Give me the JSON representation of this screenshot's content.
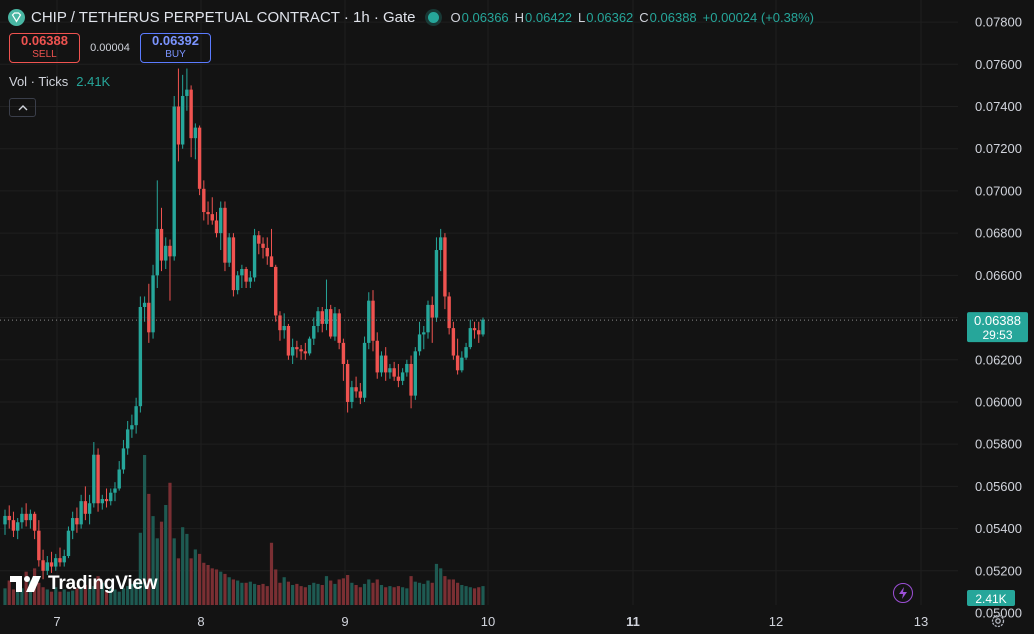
{
  "header": {
    "title": "CHIP / TETHERUS PERPETUAL CONTRACT · 1h · Gate",
    "ohlc": {
      "o_label": "O",
      "o": "0.06366",
      "h_label": "H",
      "h": "0.06422",
      "l_label": "L",
      "l": "0.06362",
      "c_label": "C",
      "c": "0.06388"
    },
    "change": "+0.00024 (+0.38%)"
  },
  "trade": {
    "sell_price": "0.06388",
    "sell_label": "SELL",
    "spread": "0.00004",
    "buy_price": "0.06392",
    "buy_label": "BUY"
  },
  "volume_indicator": {
    "label": "Vol · Ticks",
    "value": "2.41K"
  },
  "brand": {
    "name": "TradingView"
  },
  "colors": {
    "background": "#131313",
    "up": "#26a69a",
    "down": "#ef5350",
    "vol_up": "#1e5a52",
    "vol_down": "#7a2f33",
    "grid": "#1f1f1f",
    "text": "#d1d4dc"
  },
  "icons": [
    "symbol-logo-icon",
    "market-status-icon",
    "chevron-up-icon",
    "tradingview-logo-icon",
    "lightning-icon",
    "gear-icon"
  ],
  "chart_data": {
    "type": "candlestick",
    "title": "CHIP / TETHERUS PERPETUAL CONTRACT",
    "interval": "1h",
    "ylim": [
      0.05,
      0.079
    ],
    "y_ticks": [
      "0.07800",
      "0.07600",
      "0.07400",
      "0.07200",
      "0.07000",
      "0.06800",
      "0.06600",
      "0.06400",
      "0.06200",
      "0.06000",
      "0.05800",
      "0.05600",
      "0.05400",
      "0.05200",
      "0.05000"
    ],
    "x_ticks": [
      "7",
      "8",
      "9",
      "10",
      "11",
      "12",
      "13"
    ],
    "x_ticks_bold": [
      "11"
    ],
    "last_price": "0.06388",
    "countdown": "29:53",
    "last_volume": "2.41K",
    "points": [
      [
        0.0542,
        0.0549,
        0.0537,
        0.0546
      ],
      [
        0.0546,
        0.0551,
        0.054,
        0.0544
      ],
      [
        0.0544,
        0.0548,
        0.0536,
        0.0539
      ],
      [
        0.0539,
        0.0545,
        0.0535,
        0.0543
      ],
      [
        0.0543,
        0.055,
        0.054,
        0.0547
      ],
      [
        0.0547,
        0.0552,
        0.0541,
        0.0544
      ],
      [
        0.0544,
        0.0549,
        0.054,
        0.0547
      ],
      [
        0.0547,
        0.0548,
        0.0535,
        0.0539
      ],
      [
        0.0539,
        0.0544,
        0.0522,
        0.0525
      ],
      [
        0.0525,
        0.053,
        0.0516,
        0.052
      ],
      [
        0.052,
        0.0527,
        0.0518,
        0.0524
      ],
      [
        0.0524,
        0.0529,
        0.0519,
        0.0522
      ],
      [
        0.0522,
        0.0528,
        0.052,
        0.0526
      ],
      [
        0.0526,
        0.0531,
        0.0522,
        0.0524
      ],
      [
        0.0524,
        0.053,
        0.0522,
        0.0527
      ],
      [
        0.0527,
        0.0541,
        0.0526,
        0.0539
      ],
      [
        0.0539,
        0.0548,
        0.0535,
        0.0545
      ],
      [
        0.0545,
        0.055,
        0.0538,
        0.0542
      ],
      [
        0.0542,
        0.0556,
        0.054,
        0.0553
      ],
      [
        0.0553,
        0.056,
        0.0544,
        0.0547
      ],
      [
        0.0547,
        0.0556,
        0.0542,
        0.0552
      ],
      [
        0.0552,
        0.0581,
        0.055,
        0.0575
      ],
      [
        0.0575,
        0.0578,
        0.0548,
        0.0552
      ],
      [
        0.0552,
        0.0556,
        0.0549,
        0.0554
      ],
      [
        0.0554,
        0.0559,
        0.055,
        0.0553
      ],
      [
        0.0553,
        0.0559,
        0.0551,
        0.0557
      ],
      [
        0.0557,
        0.0562,
        0.0553,
        0.0559
      ],
      [
        0.0559,
        0.0572,
        0.0558,
        0.0568
      ],
      [
        0.0568,
        0.0582,
        0.0566,
        0.0578
      ],
      [
        0.0578,
        0.0591,
        0.0575,
        0.0587
      ],
      [
        0.0587,
        0.0594,
        0.0583,
        0.0589
      ],
      [
        0.0589,
        0.0602,
        0.0585,
        0.0598
      ],
      [
        0.0598,
        0.065,
        0.0595,
        0.0645
      ],
      [
        0.0645,
        0.065,
        0.0638,
        0.0647
      ],
      [
        0.0647,
        0.0656,
        0.0628,
        0.0633
      ],
      [
        0.0633,
        0.0665,
        0.063,
        0.066
      ],
      [
        0.066,
        0.0705,
        0.0654,
        0.0682
      ],
      [
        0.0682,
        0.0692,
        0.0662,
        0.0667
      ],
      [
        0.0667,
        0.0678,
        0.0663,
        0.0674
      ],
      [
        0.0674,
        0.0677,
        0.0648,
        0.0669
      ],
      [
        0.0669,
        0.0745,
        0.0667,
        0.074
      ],
      [
        0.074,
        0.0758,
        0.0714,
        0.0722
      ],
      [
        0.0722,
        0.0755,
        0.072,
        0.0745
      ],
      [
        0.0745,
        0.0758,
        0.0738,
        0.0748
      ],
      [
        0.0748,
        0.075,
        0.0716,
        0.0725
      ],
      [
        0.0725,
        0.0732,
        0.0715,
        0.073
      ],
      [
        0.073,
        0.0731,
        0.0698,
        0.0701
      ],
      [
        0.0701,
        0.0705,
        0.0686,
        0.069
      ],
      [
        0.069,
        0.0695,
        0.0684,
        0.0689
      ],
      [
        0.0689,
        0.0697,
        0.0684,
        0.0686
      ],
      [
        0.0686,
        0.069,
        0.0678,
        0.068
      ],
      [
        0.068,
        0.0695,
        0.0672,
        0.0692
      ],
      [
        0.0692,
        0.0695,
        0.0662,
        0.0666
      ],
      [
        0.0666,
        0.068,
        0.0664,
        0.0678
      ],
      [
        0.0678,
        0.068,
        0.065,
        0.0653
      ],
      [
        0.0653,
        0.0662,
        0.0651,
        0.066
      ],
      [
        0.066,
        0.0665,
        0.0654,
        0.0663
      ],
      [
        0.0663,
        0.0664,
        0.0654,
        0.0657
      ],
      [
        0.0657,
        0.0662,
        0.0654,
        0.0659
      ],
      [
        0.0659,
        0.0682,
        0.0657,
        0.0679
      ],
      [
        0.0679,
        0.0681,
        0.067,
        0.0675
      ],
      [
        0.0675,
        0.0678,
        0.0668,
        0.0673
      ],
      [
        0.0673,
        0.0678,
        0.0665,
        0.0669
      ],
      [
        0.0669,
        0.0682,
        0.0664,
        0.0664
      ],
      [
        0.0664,
        0.0665,
        0.0638,
        0.0641
      ],
      [
        0.0641,
        0.0643,
        0.0629,
        0.0634
      ],
      [
        0.0634,
        0.0642,
        0.063,
        0.0636
      ],
      [
        0.0636,
        0.0637,
        0.062,
        0.0622
      ],
      [
        0.0622,
        0.063,
        0.0618,
        0.0626
      ],
      [
        0.0626,
        0.0629,
        0.0621,
        0.0625
      ],
      [
        0.0625,
        0.0627,
        0.062,
        0.0624
      ],
      [
        0.0624,
        0.0628,
        0.062,
        0.0623
      ],
      [
        0.0623,
        0.0631,
        0.0622,
        0.063
      ],
      [
        0.063,
        0.064,
        0.0627,
        0.0636
      ],
      [
        0.0636,
        0.0645,
        0.0633,
        0.0643
      ],
      [
        0.0643,
        0.0645,
        0.0633,
        0.0637
      ],
      [
        0.0637,
        0.0658,
        0.0634,
        0.0644
      ],
      [
        0.0644,
        0.0646,
        0.063,
        0.0631
      ],
      [
        0.0631,
        0.0645,
        0.0629,
        0.0642
      ],
      [
        0.0642,
        0.0644,
        0.0625,
        0.0628
      ],
      [
        0.0628,
        0.063,
        0.061,
        0.0618
      ],
      [
        0.0618,
        0.062,
        0.0595,
        0.06
      ],
      [
        0.06,
        0.061,
        0.0597,
        0.0607
      ],
      [
        0.0607,
        0.0612,
        0.0602,
        0.0605
      ],
      [
        0.0605,
        0.0609,
        0.0599,
        0.0602
      ],
      [
        0.0602,
        0.0631,
        0.06,
        0.0628
      ],
      [
        0.0628,
        0.0652,
        0.0625,
        0.0648
      ],
      [
        0.0648,
        0.0653,
        0.0624,
        0.0629
      ],
      [
        0.0629,
        0.0633,
        0.0611,
        0.0614
      ],
      [
        0.0614,
        0.0624,
        0.0612,
        0.0622
      ],
      [
        0.0622,
        0.0626,
        0.061,
        0.0614
      ],
      [
        0.0614,
        0.0618,
        0.0611,
        0.0616
      ],
      [
        0.0616,
        0.0619,
        0.061,
        0.0612
      ],
      [
        0.0612,
        0.0618,
        0.0607,
        0.061
      ],
      [
        0.061,
        0.0616,
        0.0608,
        0.0614
      ],
      [
        0.0614,
        0.062,
        0.0612,
        0.0618
      ],
      [
        0.0618,
        0.0622,
        0.0597,
        0.0603
      ],
      [
        0.0603,
        0.0626,
        0.0601,
        0.0624
      ],
      [
        0.0624,
        0.0638,
        0.0622,
        0.0632
      ],
      [
        0.0632,
        0.0636,
        0.0625,
        0.0633
      ],
      [
        0.0633,
        0.0648,
        0.063,
        0.0646
      ],
      [
        0.0646,
        0.065,
        0.0628,
        0.064
      ],
      [
        0.064,
        0.0678,
        0.0638,
        0.0672
      ],
      [
        0.0672,
        0.0682,
        0.0662,
        0.0678
      ],
      [
        0.0678,
        0.068,
        0.0644,
        0.065
      ],
      [
        0.065,
        0.0652,
        0.0632,
        0.0635
      ],
      [
        0.0635,
        0.0638,
        0.062,
        0.0622
      ],
      [
        0.0622,
        0.063,
        0.0613,
        0.0615
      ],
      [
        0.0615,
        0.0624,
        0.0614,
        0.0621
      ],
      [
        0.0621,
        0.0628,
        0.062,
        0.0626
      ],
      [
        0.0626,
        0.0639,
        0.0625,
        0.0635
      ],
      [
        0.0635,
        0.0638,
        0.063,
        0.0634
      ],
      [
        0.0634,
        0.0638,
        0.0628,
        0.0632
      ],
      [
        0.0632,
        0.064,
        0.0631,
        0.0639
      ]
    ],
    "volume": [
      150,
      220,
      140,
      160,
      150,
      300,
      220,
      330,
      200,
      160,
      140,
      120,
      160,
      120,
      140,
      120,
      130,
      150,
      160,
      180,
      150,
      170,
      260,
      200,
      130,
      150,
      140,
      120,
      150,
      170,
      190,
      210,
      650,
      1350,
      1000,
      800,
      600,
      750,
      900,
      1100,
      600,
      420,
      700,
      640,
      420,
      500,
      460,
      380,
      360,
      330,
      320,
      300,
      280,
      250,
      230,
      220,
      200,
      200,
      210,
      190,
      180,
      190,
      170,
      560,
      320,
      200,
      250,
      210,
      180,
      190,
      170,
      160,
      180,
      200,
      190,
      180,
      260,
      220,
      190,
      230,
      240,
      270,
      200,
      180,
      160,
      190,
      230,
      200,
      230,
      180,
      160,
      170,
      160,
      170,
      160,
      150,
      260,
      210,
      200,
      190,
      220,
      200,
      370,
      330,
      260,
      230,
      230,
      200,
      180,
      170,
      160,
      150,
      160,
      170
    ]
  }
}
